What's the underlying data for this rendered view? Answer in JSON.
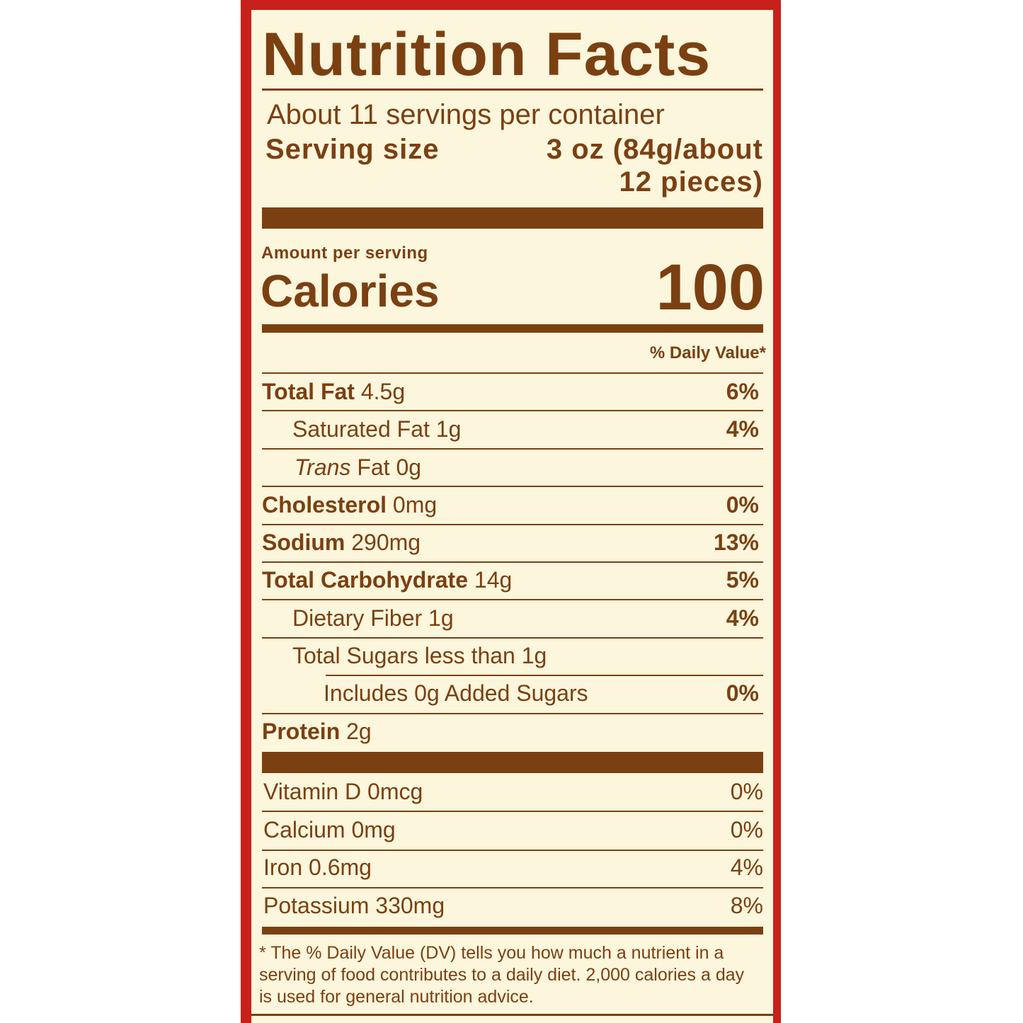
{
  "label": {
    "title": "Nutrition Facts",
    "servings_per_container": "About 11 servings per container",
    "serving_size_label": "Serving size",
    "serving_size_value_line1": "3 oz (84g/about",
    "serving_size_value_line2": "12 pieces)",
    "amount_per_serving": "Amount per serving",
    "calories_label": "Calories",
    "calories_value": "100",
    "daily_value_header": "% Daily Value*",
    "nutrients": [
      {
        "name": "Total Fat",
        "amount": "4.5g",
        "dv": "6%"
      },
      {
        "name": "Saturated Fat 1g",
        "amount": "",
        "dv": "4%"
      },
      {
        "name": "Trans",
        "amount": "Fat 0g",
        "dv": ""
      },
      {
        "name": "Cholesterol",
        "amount": "0mg",
        "dv": "0%"
      },
      {
        "name": "Sodium",
        "amount": "290mg",
        "dv": "13%"
      },
      {
        "name": "Total Carbohydrate",
        "amount": "14g",
        "dv": "5%"
      },
      {
        "name": "Dietary Fiber 1g",
        "amount": "",
        "dv": "4%"
      },
      {
        "name": "Total Sugars less than 1g",
        "amount": "",
        "dv": ""
      },
      {
        "name": "Includes 0g Added Sugars",
        "amount": "",
        "dv": "0%"
      },
      {
        "name": "Protein",
        "amount": "2g",
        "dv": ""
      }
    ],
    "vitamins": [
      {
        "name": "Vitamin D 0mcg",
        "dv": "0%"
      },
      {
        "name": "Calcium 0mg",
        "dv": "0%"
      },
      {
        "name": "Iron 0.6mg",
        "dv": "4%"
      },
      {
        "name": "Potassium 330mg",
        "dv": "8%"
      }
    ],
    "footnote": "* The % Daily Value (DV) tells you how much a nutrient in a serving of food contributes to a daily diet. 2,000 calories a day is used for general nutrition advice."
  },
  "colors": {
    "frame": "#c8201a",
    "panel": "#fbf6dc",
    "text": "#7b4012"
  }
}
